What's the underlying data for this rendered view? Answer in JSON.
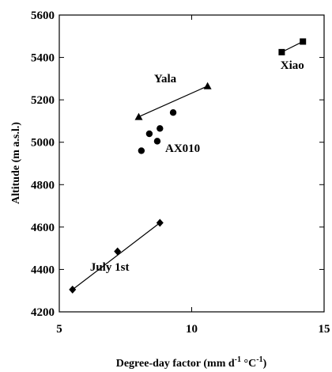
{
  "chart_data": {
    "type": "scatter",
    "xlabel": "Degree-day factor (mm d",
    "xlabel_sup1": "-1",
    "xlabel_mid": " °C",
    "xlabel_sup2": "-1",
    "xlabel_end": ")",
    "ylabel": "Altitude (m a.s.l.)",
    "xlim": [
      5,
      15
    ],
    "ylim": [
      4200,
      5600
    ],
    "xticks": [
      5,
      10,
      15
    ],
    "yticks": [
      4200,
      4400,
      4600,
      4800,
      5000,
      5200,
      5400,
      5600
    ],
    "grid": false,
    "series": [
      {
        "name": "Xiao",
        "marker": "square",
        "x": [
          13.4,
          14.2
        ],
        "y": [
          5425,
          5475
        ],
        "fit_line": [
          [
            13.4,
            5425
          ],
          [
            14.2,
            5475
          ]
        ]
      },
      {
        "name": "Yala",
        "marker": "triangle",
        "x": [
          8.0,
          10.6
        ],
        "y": [
          5120,
          5265
        ],
        "fit_line": [
          [
            8.0,
            5120
          ],
          [
            10.6,
            5265
          ]
        ]
      },
      {
        "name": "AX010",
        "marker": "circle",
        "x": [
          8.1,
          8.4,
          8.7,
          8.8,
          9.3
        ],
        "y": [
          4960,
          5040,
          5005,
          5065,
          5140
        ],
        "fit_line": null
      },
      {
        "name": "July 1st",
        "marker": "diamond",
        "x": [
          5.5,
          7.2,
          8.8
        ],
        "y": [
          4305,
          4485,
          4620
        ],
        "fit_line": [
          [
            5.5,
            4305
          ],
          [
            8.8,
            4620
          ]
        ]
      }
    ]
  }
}
